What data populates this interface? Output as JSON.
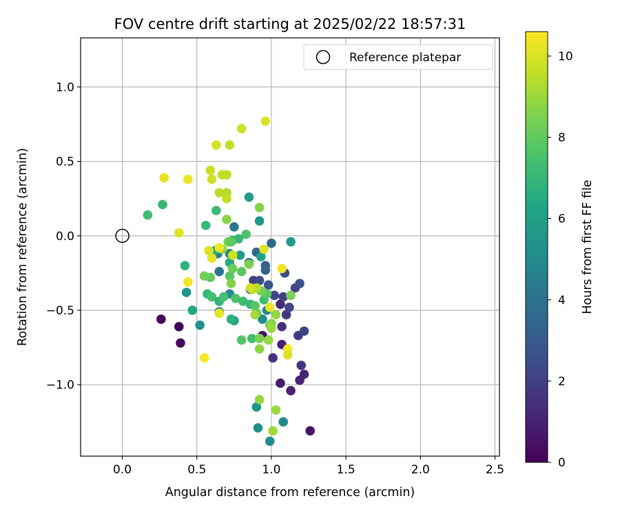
{
  "chart_data": {
    "type": "scatter",
    "title": "FOV centre drift starting at 2025/02/22 18:57:31",
    "xlabel": "Angular distance from reference (arcmin)",
    "ylabel": "Rotation from reference (arcmin)",
    "xlim": [
      -0.28,
      2.53
    ],
    "ylim": [
      -1.48,
      1.33
    ],
    "xticks": [
      0.0,
      0.5,
      1.0,
      1.5,
      2.0,
      2.5
    ],
    "xtick_labels": [
      "0.0",
      "0.5",
      "1.0",
      "1.5",
      "2.0",
      "2.5"
    ],
    "yticks": [
      -1.0,
      -0.5,
      0.0,
      0.5,
      1.0
    ],
    "ytick_labels": [
      "−1.0",
      "−0.5",
      "0.0",
      "0.5",
      "1.0"
    ],
    "grid": true,
    "legend": {
      "position": "upper right",
      "label": "Reference platepar"
    },
    "reference_marker": {
      "x": 0.0,
      "y": 0.0
    },
    "colorbar": {
      "label": "Hours from first FF file",
      "colormap": "viridis",
      "range": [
        0,
        10.6
      ],
      "ticks": [
        0,
        2,
        4,
        6,
        8,
        10
      ],
      "tick_labels": [
        "0",
        "2",
        "4",
        "6",
        "8",
        "10"
      ]
    },
    "points": [
      {
        "x": 0.26,
        "y": -0.56,
        "c": 0.1
      },
      {
        "x": 0.38,
        "y": -0.61,
        "c": 0.1
      },
      {
        "x": 0.39,
        "y": -0.72,
        "c": 0.3
      },
      {
        "x": 0.94,
        "y": -0.67,
        "c": 0.5
      },
      {
        "x": 1.06,
        "y": -0.99,
        "c": 0.8
      },
      {
        "x": 1.13,
        "y": -1.04,
        "c": 1.0
      },
      {
        "x": 1.19,
        "y": -0.97,
        "c": 1.1
      },
      {
        "x": 1.22,
        "y": -0.93,
        "c": 1.2
      },
      {
        "x": 1.26,
        "y": -1.31,
        "c": 0.6
      },
      {
        "x": 1.07,
        "y": -0.73,
        "c": 1.0
      },
      {
        "x": 1.01,
        "y": -0.82,
        "c": 1.5
      },
      {
        "x": 1.2,
        "y": -0.87,
        "c": 1.6
      },
      {
        "x": 1.18,
        "y": -0.67,
        "c": 1.8
      },
      {
        "x": 1.22,
        "y": -0.64,
        "c": 2.1
      },
      {
        "x": 1.06,
        "y": -0.46,
        "c": 1.3
      },
      {
        "x": 1.07,
        "y": -0.61,
        "c": 1.5
      },
      {
        "x": 1.1,
        "y": -0.53,
        "c": 1.7
      },
      {
        "x": 1.12,
        "y": -0.48,
        "c": 2.2
      },
      {
        "x": 1.08,
        "y": -0.41,
        "c": 2.0
      },
      {
        "x": 1.02,
        "y": -0.4,
        "c": 2.3
      },
      {
        "x": 1.16,
        "y": -0.35,
        "c": 2.1
      },
      {
        "x": 1.19,
        "y": -0.32,
        "c": 2.7
      },
      {
        "x": 1.09,
        "y": -0.25,
        "c": 2.5
      },
      {
        "x": 0.88,
        "y": -0.3,
        "c": 2.0
      },
      {
        "x": 0.92,
        "y": -0.3,
        "c": 2.4
      },
      {
        "x": 0.96,
        "y": -0.23,
        "c": 3.1
      },
      {
        "x": 0.96,
        "y": -0.2,
        "c": 3.4
      },
      {
        "x": 0.9,
        "y": -0.11,
        "c": 3.6
      },
      {
        "x": 0.98,
        "y": -0.33,
        "c": 2.9
      },
      {
        "x": 1.0,
        "y": -0.05,
        "c": 3.6
      },
      {
        "x": 0.86,
        "y": -0.36,
        "c": 3.0
      },
      {
        "x": 0.85,
        "y": -0.18,
        "c": 3.8
      },
      {
        "x": 0.75,
        "y": 0.06,
        "c": 4.2
      },
      {
        "x": 0.65,
        "y": -0.24,
        "c": 4.1
      },
      {
        "x": 0.64,
        "y": -0.12,
        "c": 4.4
      },
      {
        "x": 0.72,
        "y": -0.12,
        "c": 4.6
      },
      {
        "x": 0.65,
        "y": -0.51,
        "c": 4.7
      },
      {
        "x": 0.72,
        "y": -0.39,
        "c": 5.0
      },
      {
        "x": 0.52,
        "y": -0.6,
        "c": 5.3
      },
      {
        "x": 0.43,
        "y": -0.38,
        "c": 5.4
      },
      {
        "x": 0.94,
        "y": -0.56,
        "c": 5.1
      },
      {
        "x": 0.97,
        "y": -0.5,
        "c": 5.0
      },
      {
        "x": 1.08,
        "y": -1.25,
        "c": 4.9
      },
      {
        "x": 0.91,
        "y": -1.29,
        "c": 5.2
      },
      {
        "x": 0.99,
        "y": -1.38,
        "c": 5.1
      },
      {
        "x": 0.9,
        "y": -1.15,
        "c": 5.5
      },
      {
        "x": 0.92,
        "y": 0.1,
        "c": 5.6
      },
      {
        "x": 0.85,
        "y": 0.26,
        "c": 5.8
      },
      {
        "x": 1.13,
        "y": -0.04,
        "c": 5.7
      },
      {
        "x": 0.79,
        "y": -0.13,
        "c": 5.9
      },
      {
        "x": 0.93,
        "y": -0.14,
        "c": 6.1
      },
      {
        "x": 0.75,
        "y": -0.57,
        "c": 6.2
      },
      {
        "x": 0.47,
        "y": -0.5,
        "c": 6.3
      },
      {
        "x": 0.42,
        "y": -0.2,
        "c": 6.8
      },
      {
        "x": 0.27,
        "y": 0.21,
        "c": 7.0
      },
      {
        "x": 0.17,
        "y": 0.14,
        "c": 7.3
      },
      {
        "x": 0.56,
        "y": 0.07,
        "c": 7.1
      },
      {
        "x": 0.63,
        "y": 0.17,
        "c": 7.2
      },
      {
        "x": 0.62,
        "y": -0.1,
        "c": 6.6
      },
      {
        "x": 0.74,
        "y": -0.03,
        "c": 6.9
      },
      {
        "x": 0.78,
        "y": -0.02,
        "c": 7.0
      },
      {
        "x": 0.72,
        "y": -0.18,
        "c": 6.5
      },
      {
        "x": 0.57,
        "y": -0.39,
        "c": 7.0
      },
      {
        "x": 0.6,
        "y": -0.41,
        "c": 7.4
      },
      {
        "x": 0.65,
        "y": -0.44,
        "c": 6.8
      },
      {
        "x": 0.68,
        "y": -0.41,
        "c": 7.5
      },
      {
        "x": 0.73,
        "y": -0.56,
        "c": 6.7
      },
      {
        "x": 0.76,
        "y": -0.42,
        "c": 7.6
      },
      {
        "x": 0.81,
        "y": -0.44,
        "c": 7.2
      },
      {
        "x": 0.86,
        "y": -0.46,
        "c": 7.0
      },
      {
        "x": 0.89,
        "y": -0.47,
        "c": 7.8
      },
      {
        "x": 0.87,
        "y": -0.69,
        "c": 7.4
      },
      {
        "x": 0.8,
        "y": -0.7,
        "c": 7.7
      },
      {
        "x": 0.9,
        "y": -0.52,
        "c": 8.0
      },
      {
        "x": 0.95,
        "y": -0.43,
        "c": 7.3
      },
      {
        "x": 0.97,
        "y": -0.39,
        "c": 7.9
      },
      {
        "x": 0.93,
        "y": -0.37,
        "c": 8.4
      },
      {
        "x": 0.83,
        "y": 0.01,
        "c": 7.6
      },
      {
        "x": 0.85,
        "y": -0.19,
        "c": 8.5
      },
      {
        "x": 0.8,
        "y": -0.24,
        "c": 7.9
      },
      {
        "x": 0.72,
        "y": -0.27,
        "c": 7.8
      },
      {
        "x": 0.74,
        "y": -0.22,
        "c": 8.2
      },
      {
        "x": 0.73,
        "y": -0.32,
        "c": 8.6
      },
      {
        "x": 0.59,
        "y": -0.28,
        "c": 8.0
      },
      {
        "x": 0.55,
        "y": -0.27,
        "c": 8.3
      },
      {
        "x": 0.7,
        "y": 0.11,
        "c": 8.7
      },
      {
        "x": 0.71,
        "y": -0.04,
        "c": 8.4
      },
      {
        "x": 0.73,
        "y": -0.04,
        "c": 8.0
      },
      {
        "x": 0.67,
        "y": -0.09,
        "c": 8.8
      },
      {
        "x": 0.92,
        "y": 0.19,
        "c": 8.6
      },
      {
        "x": 0.92,
        "y": -0.69,
        "c": 8.5
      },
      {
        "x": 0.92,
        "y": -0.76,
        "c": 8.8
      },
      {
        "x": 0.99,
        "y": -0.6,
        "c": 8.3
      },
      {
        "x": 1.0,
        "y": -0.59,
        "c": 8.7
      },
      {
        "x": 1.03,
        "y": -0.53,
        "c": 8.9
      },
      {
        "x": 1.0,
        "y": -0.62,
        "c": 9.0
      },
      {
        "x": 1.13,
        "y": -0.4,
        "c": 8.5
      },
      {
        "x": 0.89,
        "y": -0.53,
        "c": 9.1
      },
      {
        "x": 0.87,
        "y": -0.36,
        "c": 9.2
      },
      {
        "x": 0.9,
        "y": -0.35,
        "c": 9.4
      },
      {
        "x": 0.92,
        "y": -1.1,
        "c": 8.9
      },
      {
        "x": 1.03,
        "y": -1.17,
        "c": 9.0
      },
      {
        "x": 1.01,
        "y": -1.31,
        "c": 9.1
      },
      {
        "x": 0.98,
        "y": -0.7,
        "c": 8.9
      },
      {
        "x": 0.7,
        "y": 0.41,
        "c": 9.5
      },
      {
        "x": 0.67,
        "y": 0.41,
        "c": 9.6
      },
      {
        "x": 0.59,
        "y": 0.44,
        "c": 9.7
      },
      {
        "x": 0.6,
        "y": 0.38,
        "c": 9.8
      },
      {
        "x": 0.65,
        "y": 0.29,
        "c": 9.5
      },
      {
        "x": 0.7,
        "y": 0.29,
        "c": 9.3
      },
      {
        "x": 0.7,
        "y": 0.25,
        "c": 9.6
      },
      {
        "x": 0.63,
        "y": 0.61,
        "c": 9.9
      },
      {
        "x": 0.72,
        "y": 0.61,
        "c": 9.6
      },
      {
        "x": 0.8,
        "y": 0.72,
        "c": 9.8
      },
      {
        "x": 0.96,
        "y": 0.77,
        "c": 10.0
      },
      {
        "x": 0.28,
        "y": 0.39,
        "c": 10.2
      },
      {
        "x": 0.44,
        "y": 0.38,
        "c": 10.3
      },
      {
        "x": 0.38,
        "y": 0.02,
        "c": 10.1
      },
      {
        "x": 0.58,
        "y": -0.1,
        "c": 10.0
      },
      {
        "x": 0.6,
        "y": -0.15,
        "c": 10.2
      },
      {
        "x": 0.65,
        "y": -0.08,
        "c": 10.3
      },
      {
        "x": 0.74,
        "y": -0.13,
        "c": 9.8
      },
      {
        "x": 0.95,
        "y": -0.09,
        "c": 10.1
      },
      {
        "x": 0.86,
        "y": -0.35,
        "c": 9.9
      },
      {
        "x": 0.44,
        "y": -0.31,
        "c": 10.4
      },
      {
        "x": 0.55,
        "y": -0.82,
        "c": 10.5
      },
      {
        "x": 0.65,
        "y": -0.52,
        "c": 10.2
      },
      {
        "x": 1.07,
        "y": -0.22,
        "c": 10.4
      },
      {
        "x": 0.99,
        "y": -0.48,
        "c": 10.3
      },
      {
        "x": 1.11,
        "y": -0.76,
        "c": 10.5
      },
      {
        "x": 1.11,
        "y": -0.8,
        "c": 10.1
      }
    ]
  }
}
